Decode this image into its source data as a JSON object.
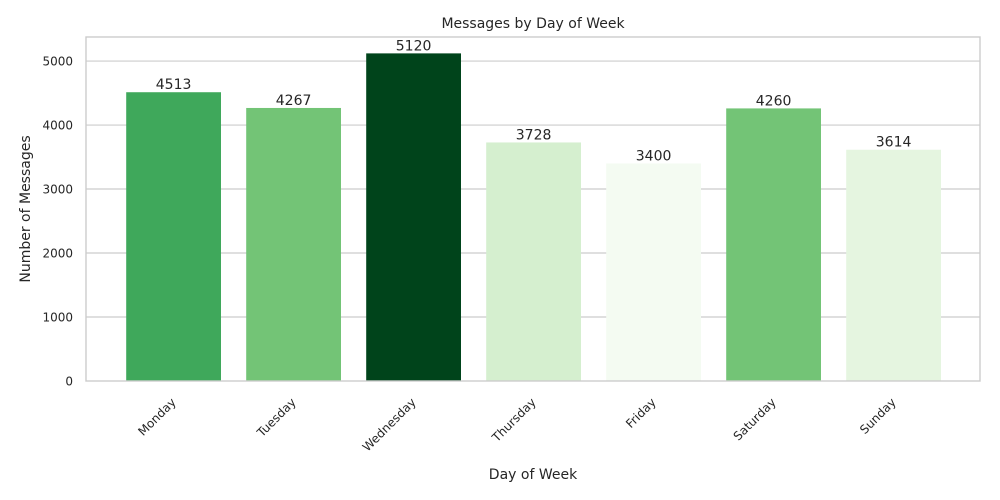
{
  "chart_data": {
    "type": "bar",
    "title": "Messages by Day of Week",
    "xlabel": "Day of Week",
    "ylabel": "Number of Messages",
    "categories": [
      "Monday",
      "Tuesday",
      "Wednesday",
      "Thursday",
      "Friday",
      "Saturday",
      "Sunday"
    ],
    "values": [
      4513,
      4267,
      5120,
      3728,
      3400,
      4260,
      3614
    ],
    "value_labels": [
      "4513",
      "4267",
      "5120",
      "3728",
      "3400",
      "4260",
      "3614"
    ],
    "bar_colors": [
      "#3fa85b",
      "#73c476",
      "#00441b",
      "#d5efcf",
      "#f4fbf2",
      "#73c476",
      "#e5f5e0"
    ],
    "ylim": [
      0,
      5376
    ],
    "yticks": [
      0,
      1000,
      2000,
      3000,
      4000,
      5000
    ],
    "ytick_labels": [
      "0",
      "1000",
      "2000",
      "3000",
      "4000",
      "5000"
    ],
    "grid": "horizontal",
    "legend": "none",
    "background": "#ffffff",
    "grid_color": "#cccccc"
  }
}
